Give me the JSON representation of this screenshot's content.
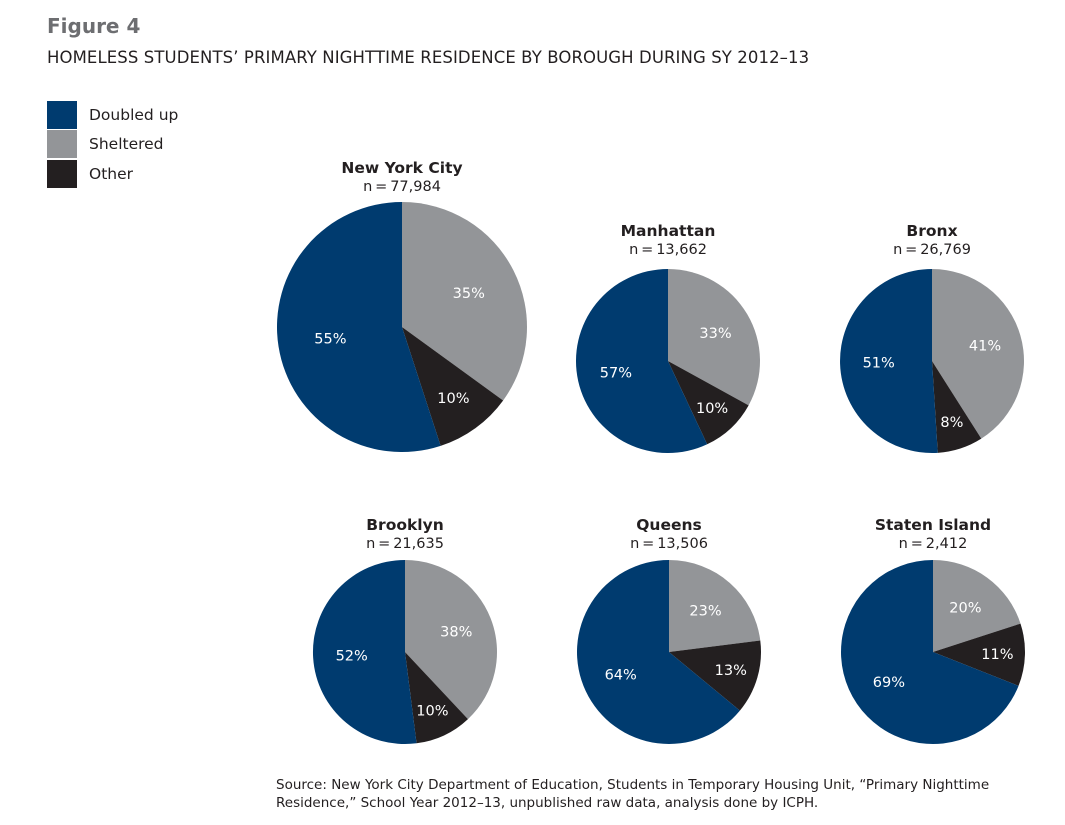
{
  "figure_label": "Figure 4",
  "title": "HOMELESS STUDENTS’ PRIMARY NIGHTTIME RESIDENCE BY BOROUGH DURING SY 2012–13",
  "colors": {
    "doubled_up": "#003b6f",
    "sheltered": "#939598",
    "other": "#231f20"
  },
  "legend": [
    {
      "label": "Doubled up",
      "color": "#003b6f"
    },
    {
      "label": "Sheltered",
      "color": "#939598"
    },
    {
      "label": "Other",
      "color": "#231f20"
    }
  ],
  "chart_data": {
    "type": "pie",
    "title": "HOMELESS STUDENTS’ PRIMARY NIGHTTIME RESIDENCE BY BOROUGH DURING SY 2012–13",
    "categories": [
      "Doubled up",
      "Sheltered",
      "Other"
    ],
    "pies": [
      {
        "name": "New York City",
        "n_label": "n = 77,984",
        "values": [
          55,
          35,
          10
        ],
        "labels": [
          "55%",
          "35%",
          "10%"
        ]
      },
      {
        "name": "Manhattan",
        "n_label": "n = 13,662",
        "values": [
          57,
          33,
          10
        ],
        "labels": [
          "57%",
          "33%",
          "10%"
        ]
      },
      {
        "name": "Bronx",
        "n_label": "n = 26,769",
        "values": [
          51,
          41,
          8
        ],
        "labels": [
          "51%",
          "41%",
          "8%"
        ]
      },
      {
        "name": "Brooklyn",
        "n_label": "n = 21,635",
        "values": [
          52,
          38,
          10
        ],
        "labels": [
          "52%",
          "38%",
          "10%"
        ]
      },
      {
        "name": "Queens",
        "n_label": "n = 13,506",
        "values": [
          64,
          23,
          13
        ],
        "labels": [
          "64%",
          "23%",
          "13%"
        ]
      },
      {
        "name": "Staten Island",
        "n_label": "n = 2,412",
        "values": [
          69,
          20,
          11
        ],
        "labels": [
          "69%",
          "20%",
          "11%"
        ]
      }
    ]
  },
  "source": "Source: New York City Department of Education, Students in Temporary Housing Unit, “Primary Nighttime Residence,” School Year 2012–13, unpublished raw data, analysis done by ICPH."
}
